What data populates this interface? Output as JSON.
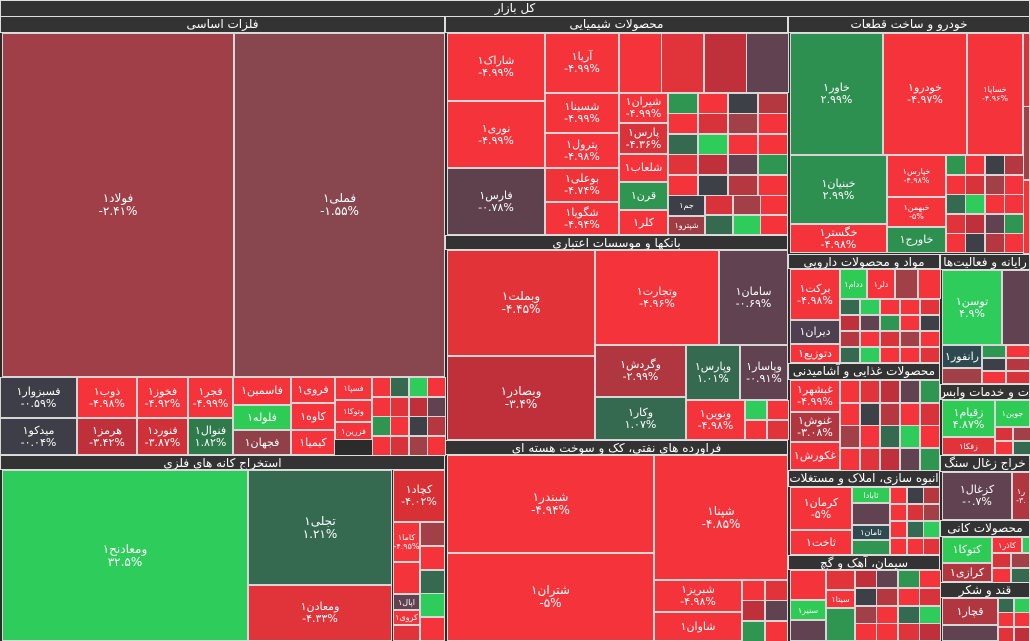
{
  "title": "کل بازار",
  "colors": {
    "up_strong": "#2ecc5a",
    "up": "#2e9650",
    "up_weak": "#366a50",
    "flat_neg": "#604250",
    "flat": "#3e4048",
    "down_weak": "#a24048",
    "down": "#c0303a",
    "down_mid": "#d8333a",
    "down_strong": "#f5333a"
  },
  "sectors": [
    {
      "title": "فلزات اساسی",
      "stocks": [
        {
          "name": "فولاد۱",
          "change": "-۲.۴۱%",
          "color": "#a03f47"
        },
        {
          "name": "فملی۱",
          "change": "-۱.۵۵%",
          "color": "#88464f"
        },
        {
          "name": "فسبزوار۱",
          "change": "-۰.۵۹%",
          "color": "#3e3e48"
        },
        {
          "name": "میدکو۱",
          "change": "-۰.۰۴%",
          "color": "#3e3e48"
        },
        {
          "name": "ذوب۱",
          "change": "-۴.۹۸%",
          "color": "#f5333a"
        },
        {
          "name": "هرمز۱",
          "change": "-۳.۴۲%",
          "color": "#c0303a"
        },
        {
          "name": "فخوز۱",
          "change": "-۴.۹۲%",
          "color": "#f5333a"
        },
        {
          "name": "فنورد۱",
          "change": "-۳.۸۷%",
          "color": "#d03038"
        },
        {
          "name": "فجر۱",
          "change": "-۴.۹۹%",
          "color": "#f5333a"
        },
        {
          "name": "فنوال۱",
          "change": "۱.۸۲%",
          "color": "#2f7a4a"
        },
        {
          "name": "فاسمین۱",
          "change": "",
          "color": "#f5333a"
        },
        {
          "name": "فلوله۱",
          "change": "",
          "color": "#2ecc55"
        },
        {
          "name": "فجهان۱",
          "change": "",
          "color": "#904048"
        },
        {
          "name": "فروی۱",
          "change": "",
          "color": "#f5333a"
        },
        {
          "name": "کاوه۱",
          "change": "",
          "color": "#f5333a"
        },
        {
          "name": "کیمیا۱",
          "change": "",
          "color": "#f5333a"
        },
        {
          "name": "فسپا۱",
          "change": "",
          "color": "#f5333a"
        },
        {
          "name": "وتوکا۱",
          "change": "",
          "color": "#f5333a"
        },
        {
          "name": "فزرین۱",
          "change": "",
          "color": "#f5333a"
        }
      ]
    },
    {
      "title": "استخراج کانه های فلزی",
      "stocks": [
        {
          "name": "ومعادنح۱",
          "change": "۳۲.۵%",
          "color": "#2ecc5a"
        },
        {
          "name": "تجلی۱",
          "change": "۱.۲۱%",
          "color": "#366a50"
        },
        {
          "name": "ومعادن۱",
          "change": "-۴.۳۳%",
          "color": "#e0333a"
        },
        {
          "name": "کچاد۱",
          "change": "-۴.۰۲%",
          "color": "#d83035"
        },
        {
          "name": "کاما۱",
          "change": "-۴.۹۵%",
          "color": "#f5333a"
        },
        {
          "name": "اپال۱",
          "change": "",
          "color": "#604250"
        },
        {
          "name": "کروی۱",
          "change": "",
          "color": "#f5333a"
        }
      ]
    },
    {
      "title": "محصولات شیمیایی",
      "stocks": [
        {
          "name": "شاراک۱",
          "change": "-۴.۹۹%",
          "color": "#f5333a"
        },
        {
          "name": "نوری۱",
          "change": "-۴.۹۹%",
          "color": "#f5333a"
        },
        {
          "name": "فارس۱",
          "change": "-۰.۷۸%",
          "color": "#5e414c"
        },
        {
          "name": "آریا۱",
          "change": "-۴.۹۹%",
          "color": "#f5333a"
        },
        {
          "name": "شسینا۱",
          "change": "-۴.۹۹%",
          "color": "#f5333a"
        },
        {
          "name": "پترول۱",
          "change": "-۴.۹۸%",
          "color": "#f5333a"
        },
        {
          "name": "بوعلی۱",
          "change": "-۴.۷۴%",
          "color": "#f03338"
        },
        {
          "name": "شگویا۱",
          "change": "-۴.۹۴%",
          "color": "#f5333a"
        },
        {
          "name": "شیران۱",
          "change": "-۴.۹۹%",
          "color": "#f5333a"
        },
        {
          "name": "پارس۱",
          "change": "-۴.۳۶%",
          "color": "#d8333a"
        },
        {
          "name": "شلعاب۱",
          "change": "",
          "color": "#f5333a"
        },
        {
          "name": "قرن۱",
          "change": "",
          "color": "#2e9650"
        },
        {
          "name": "کلر۱",
          "change": "",
          "color": "#f5333a"
        },
        {
          "name": "جم۱",
          "change": "",
          "color": "#3e3e48"
        },
        {
          "name": "شپترو۱",
          "change": "",
          "color": "#a03c44"
        }
      ]
    },
    {
      "title": "بانکها و موسسات اعتباری",
      "stocks": [
        {
          "name": "وبملت۱",
          "change": "-۴.۴۵%",
          "color": "#e13338"
        },
        {
          "name": "وبصادر۱",
          "change": "-۳.۴%",
          "color": "#c0303a"
        },
        {
          "name": "وتجارت۱",
          "change": "-۴.۹۶%",
          "color": "#f5333a"
        },
        {
          "name": "سامان۱",
          "change": "-۰.۶۹%",
          "color": "#604250"
        },
        {
          "name": "وگردش۱",
          "change": "-۲.۹۹%",
          "color": "#b0373f"
        },
        {
          "name": "وکار۱",
          "change": "۱.۰۷%",
          "color": "#366a50"
        },
        {
          "name": "وپارس۱",
          "change": "۱.۰۱%",
          "color": "#366a50"
        },
        {
          "name": "وپاسار۱",
          "change": "-۰.۹۱%",
          "color": "#604250"
        },
        {
          "name": "ونوین۱",
          "change": "-۴.۹۸%",
          "color": "#f5333a"
        }
      ]
    },
    {
      "title": "فراورده های نفتی، کک و سوخت هسته ای",
      "stocks": [
        {
          "name": "شبندر۱",
          "change": "-۴.۹۴%",
          "color": "#f5333a"
        },
        {
          "name": "شتران۱",
          "change": "-۵%",
          "color": "#f5333a"
        },
        {
          "name": "شپنا۱",
          "change": "-۴.۸۵%",
          "color": "#f5333a"
        },
        {
          "name": "شبریز۱",
          "change": "-۴.۹۸%",
          "color": "#f5333a"
        },
        {
          "name": "شاوان۱",
          "change": "",
          "color": "#f5333a"
        }
      ]
    },
    {
      "title": "خودرو و ساخت قطعات",
      "stocks": [
        {
          "name": "خاور۱",
          "change": "۲.۹۹%",
          "color": "#2e9050"
        },
        {
          "name": "خودرو۱",
          "change": "-۴.۹۷%",
          "color": "#f5333a"
        },
        {
          "name": "خساپا۱",
          "change": "-۴.۹۶%",
          "color": "#f5333a"
        },
        {
          "name": "خبنیان۱",
          "change": "۲.۹۹%",
          "color": "#2e9050"
        },
        {
          "name": "خگستر۱",
          "change": "-۴.۹۸%",
          "color": "#f5333a"
        },
        {
          "name": "خپارس۱",
          "change": "-۴.۹۸%",
          "color": "#f5333a"
        },
        {
          "name": "خبهمن۱",
          "change": "-۵%",
          "color": "#f5333a"
        },
        {
          "name": "خاورج۱",
          "change": "",
          "color": "#2e9050"
        }
      ]
    },
    {
      "title": "مواد و محصولات دارویی",
      "stocks": [
        {
          "name": "برکت۱",
          "change": "-۴.۹۸%",
          "color": "#f5333a"
        },
        {
          "name": "دیران۱",
          "change": "",
          "color": "#4e4050"
        },
        {
          "name": "دتوزیع۱",
          "change": "",
          "color": "#f5333a"
        },
        {
          "name": "ددام۱",
          "change": "",
          "color": "#2ecc55"
        },
        {
          "name": "دلر۱",
          "change": "",
          "color": "#f5333a"
        }
      ]
    },
    {
      "title": "محصولات غذایی و آشامیدنی",
      "stocks": [
        {
          "name": "غبشهر۱",
          "change": "-۴.۹۹%",
          "color": "#f5333a"
        },
        {
          "name": "غنوش۱",
          "change": "-۳.۰۸%",
          "color": "#b0373f"
        },
        {
          "name": "غکورش۱",
          "change": "",
          "color": "#f5333a"
        }
      ]
    },
    {
      "title": "انبوه سازی، املاک و مستغلات",
      "stocks": [
        {
          "name": "کرمان۱",
          "change": "-۵%",
          "color": "#f5333a"
        },
        {
          "name": "ثاخت۱",
          "change": "",
          "color": "#f5333a"
        },
        {
          "name": "ثابادا",
          "change": "",
          "color": "#2ecc55"
        },
        {
          "name": "ثامان۱",
          "change": "",
          "color": "#2e4a50"
        }
      ]
    },
    {
      "title": "سیمان، آهک و گچ",
      "stocks": [
        {
          "name": "سیتا۱",
          "change": "",
          "color": "#f5333a"
        },
        {
          "name": "سنیر۱",
          "change": "",
          "color": "#2ecc55"
        }
      ]
    },
    {
      "title": "رایانه و فعالیت‌ها",
      "stocks": [
        {
          "name": "توسن۱",
          "change": "۴.۹%",
          "color": "#2ecc5a"
        },
        {
          "name": "رانفور۱",
          "change": "",
          "color": "#2e4a50"
        }
      ]
    },
    {
      "title": "ت و خدمات وابس",
      "stocks": [
        {
          "name": "زقیام۱",
          "change": "۴.۸۷%",
          "color": "#2ecc55"
        },
        {
          "name": "جوین۱",
          "change": "",
          "color": "#2ecc55"
        },
        {
          "name": "زفکا۱",
          "change": "",
          "color": "#e0333a"
        }
      ]
    },
    {
      "title": "خراج زغال سنگ",
      "stocks": [
        {
          "name": "کزغال۱",
          "change": "-۰.۷%",
          "color": "#604250"
        },
        {
          "name": "ر۱",
          "change": "-۳.",
          "color": "#b0373f"
        }
      ]
    },
    {
      "title": "محصولات کانی",
      "stocks": [
        {
          "name": "کتوکا۱",
          "change": "",
          "color": "#2ecc55"
        },
        {
          "name": "کاذر۱",
          "change": "",
          "color": "#f5333a"
        },
        {
          "name": "کرازی۱",
          "change": "",
          "color": "#b0373f"
        }
      ]
    },
    {
      "title": "قند و شکر",
      "stocks": [
        {
          "name": "قچار۱",
          "change": "",
          "color": "#b0373f"
        }
      ]
    }
  ]
}
